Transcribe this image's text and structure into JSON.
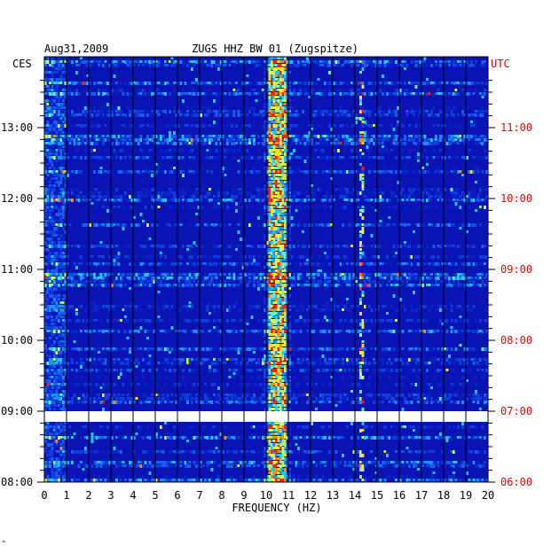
{
  "chart_data": {
    "type": "heatmap",
    "date": "Aug31,2009",
    "station": "ZUGS HHZ BW 01 (Zugspitze)",
    "left_zone": "CES",
    "right_zone": "UTC",
    "xlabel": "FREQUENCY (HZ)",
    "xlim": [
      0,
      20
    ],
    "x_ticks": [
      "0",
      "1",
      "2",
      "3",
      "4",
      "5",
      "6",
      "7",
      "8",
      "9",
      "10",
      "11",
      "12",
      "13",
      "14",
      "15",
      "16",
      "17",
      "18",
      "19",
      "20"
    ],
    "y_ticks_left": [
      "13:00",
      "12:00",
      "11:00",
      "10:00",
      "09:00",
      "08:00"
    ],
    "y_ticks_right": [
      "11:00",
      "10:00",
      "09:00",
      "08:00",
      "07:00",
      "06:00"
    ],
    "time_range_cest": [
      "08:00",
      "13:45"
    ],
    "data_gap": [
      "08:51",
      "09:00"
    ],
    "colors": {
      "background": "#0a14b4",
      "strong": "#ffff00",
      "max": "#ff0000",
      "utc_label": "#e00000"
    },
    "features": [
      {
        "name": "persistent peak",
        "frequency_hz": 10.5
      },
      {
        "name": "secondary line",
        "frequency_hz": 14.3
      }
    ],
    "corner_mark": "\""
  }
}
